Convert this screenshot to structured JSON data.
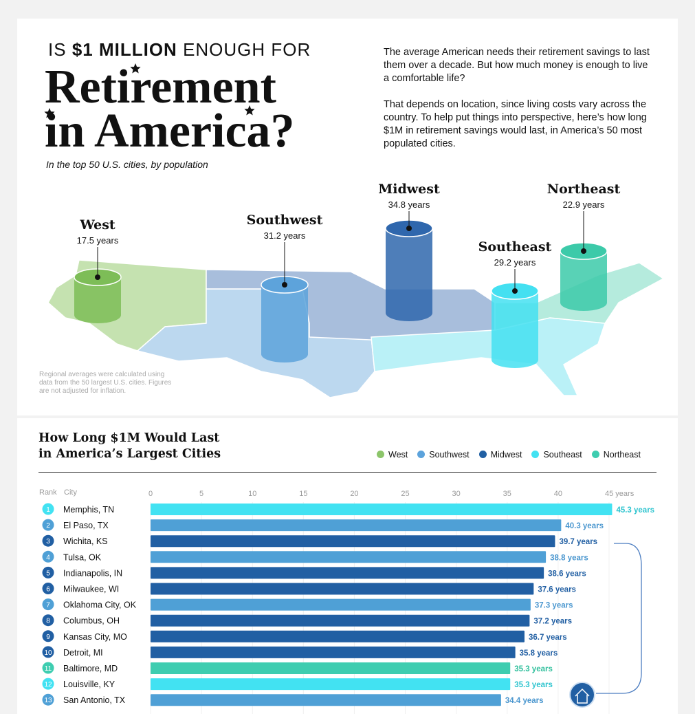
{
  "header": {
    "kicker_pre": "IS",
    "kicker_bold": "$1 MILLION",
    "kicker_post": "ENOUGH FOR",
    "title_line1": "Retirement",
    "title_line2": "in America?",
    "subtitle": "In the top 50 U.S. cities, by population"
  },
  "intro": {
    "p1": "The average American needs their retirement savings to last them over a decade. But how much money is enough to live a comfortable life?",
    "p2": "That depends on location, since living costs vary across the country. To help put things into perspective, here’s how long $1M in retirement savings would last, in America’s 50 most populated cities."
  },
  "regions": [
    {
      "name": "West",
      "years": "17.5 years",
      "value": 17.5,
      "color": "#7dbd57",
      "fill": "#c5e2b0"
    },
    {
      "name": "Southwest",
      "years": "31.2 years",
      "value": 31.2,
      "color": "#5da3db",
      "fill": "#bcd8ef"
    },
    {
      "name": "Midwest",
      "years": "34.8 years",
      "value": 34.8,
      "color": "#2f67ad",
      "fill": "#a8bedc"
    },
    {
      "name": "Southeast",
      "years": "29.2 years",
      "value": 29.2,
      "color": "#44e0f1",
      "fill": "#baf1f7"
    },
    {
      "name": "Northeast",
      "years": "22.9 years",
      "value": 22.9,
      "color": "#3ccaa9",
      "fill": "#b5ebdd"
    }
  ],
  "map_note": "Regional averages were calculated using data from the 50 largest U.S. cities. Figures are not adjusted for inflation.",
  "chart_title_line1": "How Long $1M Would Last",
  "chart_title_line2": "in America’s Largest Cities",
  "legend": [
    {
      "label": "West",
      "color": "#8cc56a"
    },
    {
      "label": "Southwest",
      "color": "#5ca3dc"
    },
    {
      "label": "Midwest",
      "color": "#2160a3"
    },
    {
      "label": "Southeast",
      "color": "#42e2f2"
    },
    {
      "label": "Northeast",
      "color": "#3ecdb0"
    }
  ],
  "col_rank": "Rank",
  "col_city": "City",
  "chart_data": {
    "type": "bar",
    "orientation": "horizontal",
    "xlim": [
      0,
      45
    ],
    "ticks": [
      "0",
      "5",
      "10",
      "15",
      "20",
      "25",
      "30",
      "35",
      "40",
      "45 years"
    ],
    "grid": true,
    "legend_position": "top-right",
    "rows": [
      {
        "rank": "1",
        "city": "Memphis, TN",
        "value": 45.3,
        "label": "45.3 years",
        "region": "Southeast"
      },
      {
        "rank": "2",
        "city": "El Paso, TX",
        "value": 40.3,
        "label": "40.3 years",
        "region": "Southwest"
      },
      {
        "rank": "3",
        "city": "Wichita, KS",
        "value": 39.7,
        "label": "39.7 years",
        "region": "Midwest"
      },
      {
        "rank": "4",
        "city": "Tulsa, OK",
        "value": 38.8,
        "label": "38.8 years",
        "region": "Southwest"
      },
      {
        "rank": "5",
        "city": "Indianapolis, IN",
        "value": 38.6,
        "label": "38.6 years",
        "region": "Midwest"
      },
      {
        "rank": "6",
        "city": "Milwaukee, WI",
        "value": 37.6,
        "label": "37.6 years",
        "region": "Midwest"
      },
      {
        "rank": "7",
        "city": "Oklahoma City, OK",
        "value": 37.3,
        "label": "37.3 years",
        "region": "Southwest"
      },
      {
        "rank": "8",
        "city": "Columbus, OH",
        "value": 37.2,
        "label": "37.2 years",
        "region": "Midwest"
      },
      {
        "rank": "9",
        "city": "Kansas City, MO",
        "value": 36.7,
        "label": "36.7 years",
        "region": "Midwest"
      },
      {
        "rank": "10",
        "city": "Detroit, MI",
        "value": 35.8,
        "label": "35.8 years",
        "region": "Midwest"
      },
      {
        "rank": "11",
        "city": "Baltimore, MD",
        "value": 35.3,
        "label": "35.3 years",
        "region": "Northeast"
      },
      {
        "rank": "12",
        "city": "Louisville, KY",
        "value": 35.3,
        "label": "35.3 years",
        "region": "Southeast"
      },
      {
        "rank": "13",
        "city": "San Antonio, TX",
        "value": 34.4,
        "label": "34.4 years",
        "region": "Southwest"
      }
    ]
  },
  "region_colors": {
    "West": "#8cc56a",
    "Southwest": "#4fa0d6",
    "Midwest": "#215fa3",
    "Southeast": "#42e2f2",
    "Northeast": "#3ecdb0"
  },
  "label_colors": {
    "West": "#6aa84f",
    "Southwest": "#4b97cf",
    "Midwest": "#215fa3",
    "Southeast": "#2ec4cf",
    "Northeast": "#2fbf9c"
  },
  "icons": {
    "house": "house-icon",
    "star": "star-icon"
  }
}
